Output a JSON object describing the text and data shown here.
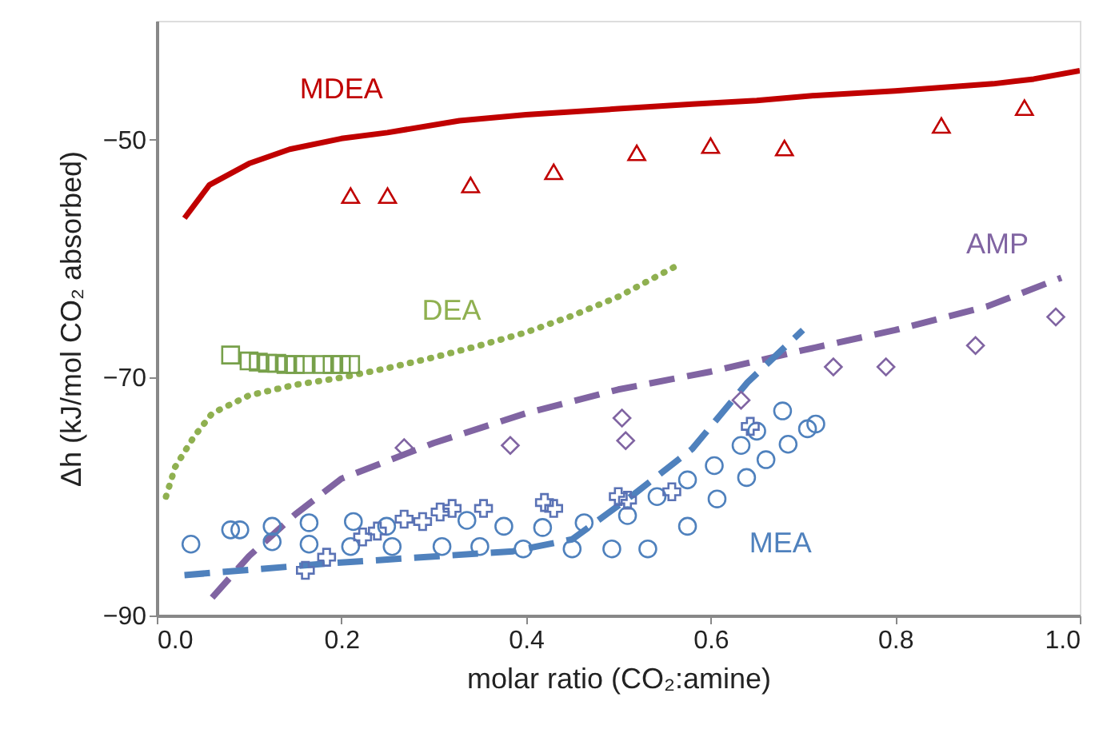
{
  "chart_data": {
    "type": "scatter",
    "xlabel": "molar ratio (CO₂:amine)",
    "ylabel": "Δh (kJ/mol CO₂ absorbed)",
    "xlim": [
      0,
      1
    ],
    "ylim": [
      -90,
      -40
    ],
    "xticks": [
      {
        "value": 0,
        "label": "0.0"
      },
      {
        "value": 0.2,
        "label": "0.2"
      },
      {
        "value": 0.4,
        "label": "0.4"
      },
      {
        "value": 0.6,
        "label": "0.6"
      },
      {
        "value": 0.8,
        "label": "0.8"
      },
      {
        "value": 1,
        "label": "1.0"
      }
    ],
    "yticks": [
      -50,
      -70,
      -90
    ],
    "grid": false,
    "legend": false,
    "series": [
      {
        "type": "line",
        "name": "MDEA",
        "color": "#c00000",
        "line_style": "solid",
        "marker": "none",
        "x": [
          0.03,
          0.057,
          0.1,
          0.144,
          0.2,
          0.25,
          0.328,
          0.4,
          0.5,
          0.58,
          0.65,
          0.71,
          0.8,
          0.906,
          0.95,
          1.0
        ],
        "values": [
          -56.6,
          -53.8,
          -52.0,
          -50.8,
          -49.9,
          -49.4,
          -48.4,
          -47.9,
          -47.4,
          -47.0,
          -46.7,
          -46.3,
          -45.9,
          -45.3,
          -44.9,
          -44.2
        ]
      },
      {
        "type": "line",
        "name": "DEA",
        "color": "#8fb050",
        "line_style": "dotted",
        "marker": "none",
        "x": [
          0.01,
          0.02,
          0.04,
          0.06,
          0.1,
          0.15,
          0.2,
          0.25,
          0.3,
          0.35,
          0.4,
          0.45,
          0.5,
          0.568
        ],
        "values": [
          -80,
          -77.5,
          -75,
          -73,
          -71.5,
          -70.6,
          -70,
          -69.2,
          -68.3,
          -67.3,
          -66.2,
          -64.8,
          -63.2,
          -60.4
        ]
      },
      {
        "type": "line",
        "name": "AMP",
        "color": "#8064a2",
        "line_style": "dashed",
        "marker": "none",
        "x": [
          0.06,
          0.1,
          0.15,
          0.2,
          0.3,
          0.4,
          0.5,
          0.6,
          0.7,
          0.8,
          0.9,
          0.98
        ],
        "values": [
          -88.5,
          -85,
          -81.5,
          -78.5,
          -75.5,
          -73,
          -71,
          -69.5,
          -67.7,
          -66,
          -64,
          -61.6
        ]
      },
      {
        "type": "line",
        "name": "MEA",
        "color": "#4f81bd",
        "line_style": "dashed",
        "marker": "none",
        "x": [
          0.03,
          0.19,
          0.386,
          0.45,
          0.517,
          0.58,
          0.64,
          0.7
        ],
        "values": [
          -86.6,
          -85.6,
          -84.6,
          -83.6,
          -79.8,
          -76.0,
          -70.4,
          -66.0
        ]
      },
      {
        "color": "#c00000",
        "marker": "triangle",
        "x": [
          0.21,
          0.25,
          0.34,
          0.43,
          0.52,
          0.6,
          0.68,
          0.85,
          0.94
        ],
        "values": [
          -54.7,
          -54.7,
          -53.8,
          -52.7,
          -51.1,
          -50.5,
          -50.7,
          -48.8,
          -47.3
        ]
      },
      {
        "color": "#77a04a",
        "marker": "square",
        "x": [
          0.08,
          0.1,
          0.11,
          0.12,
          0.13,
          0.14,
          0.15,
          0.16,
          0.18,
          0.19,
          0.2,
          0.21
        ],
        "values": [
          -68.1,
          -68.6,
          -68.7,
          -68.8,
          -68.8,
          -68.9,
          -68.9,
          -68.9,
          -68.9,
          -68.9,
          -68.9,
          -68.9
        ]
      },
      {
        "color": "#8064a2",
        "marker": "diamond",
        "x": [
          0.268,
          0.383,
          0.504,
          0.508,
          0.633,
          0.733,
          0.79,
          0.887,
          0.974
        ],
        "values": [
          -75.9,
          -75.7,
          -73.4,
          -75.3,
          -71.9,
          -69.1,
          -69.1,
          -67.3,
          -64.9
        ]
      },
      {
        "color": "#4f81bd",
        "marker": "circle",
        "x": [
          0.037,
          0.08,
          0.09,
          0.125,
          0.125,
          0.165,
          0.165,
          0.213,
          0.21,
          0.249,
          0.255,
          0.309,
          0.336,
          0.35,
          0.376,
          0.397,
          0.418,
          0.45,
          0.463,
          0.493,
          0.51,
          0.532,
          0.542,
          0.575,
          0.575,
          0.604,
          0.607,
          0.633,
          0.639,
          0.65,
          0.66,
          0.678,
          0.684,
          0.705,
          0.714
        ],
        "values": [
          -84.0,
          -82.8,
          -82.8,
          -82.5,
          -83.8,
          -82.2,
          -84.0,
          -82.1,
          -84.2,
          -82.5,
          -84.2,
          -84.2,
          -82.0,
          -84.2,
          -82.5,
          -84.4,
          -82.6,
          -84.4,
          -82.2,
          -84.4,
          -81.6,
          -84.4,
          -80.0,
          -82.5,
          -78.6,
          -77.4,
          -80.2,
          -75.7,
          -78.4,
          -74.5,
          -76.9,
          -72.8,
          -75.6,
          -74.3,
          -73.9
        ]
      },
      {
        "color": "#5a72b5",
        "marker": "cross",
        "x": [
          0.161,
          0.184,
          0.223,
          0.239,
          0.268,
          0.288,
          0.307,
          0.32,
          0.354,
          0.42,
          0.43,
          0.5,
          0.51,
          0.558,
          0.643
        ],
        "values": [
          -86.2,
          -85.1,
          -83.4,
          -82.9,
          -81.9,
          -82.1,
          -81.3,
          -81.0,
          -81.0,
          -80.5,
          -81.0,
          -80.0,
          -80.3,
          -79.6,
          -74.1
        ]
      }
    ]
  }
}
